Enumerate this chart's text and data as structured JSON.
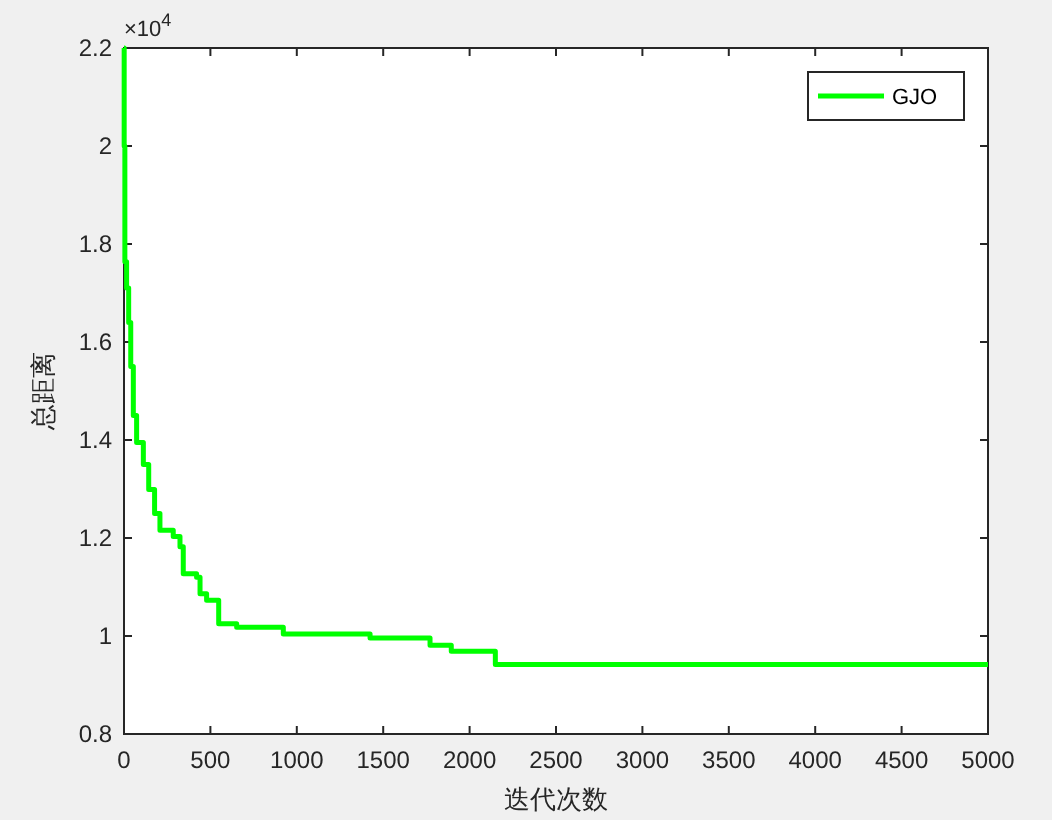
{
  "chart_data": {
    "type": "step",
    "xlabel": "迭代次数",
    "ylabel": "总距离",
    "annotations": [
      "×10$^{4}$"
    ],
    "x": [
      0,
      1,
      5,
      15,
      27,
      39,
      54,
      73,
      112,
      143,
      177,
      208,
      285,
      324,
      343,
      420,
      440,
      478,
      548,
      652,
      922,
      1424,
      1771,
      1894,
      2149,
      5000
    ],
    "series": [
      {
        "name": "GJO",
        "color": "#00ff00",
        "values": [
          2.2,
          2.0,
          1.764,
          1.71,
          1.64,
          1.55,
          1.45,
          1.395,
          1.35,
          1.299,
          1.25,
          1.216,
          1.203,
          1.182,
          1.127,
          1.12,
          1.086,
          1.073,
          1.025,
          1.018,
          1.004,
          0.996,
          0.981,
          0.969,
          0.942,
          0.942
        ]
      }
    ],
    "xlim": [
      0,
      5000
    ],
    "xticks": [
      0,
      500,
      1000,
      1500,
      2000,
      2500,
      3000,
      3500,
      4000,
      4500,
      5000
    ],
    "ylim": [
      0.8,
      2.2
    ],
    "yticks": [
      0.8,
      1,
      1.2,
      1.4,
      1.6,
      1.8,
      2,
      2.2
    ],
    "grid": false,
    "legend": "top right",
    "line_style": "solid"
  }
}
